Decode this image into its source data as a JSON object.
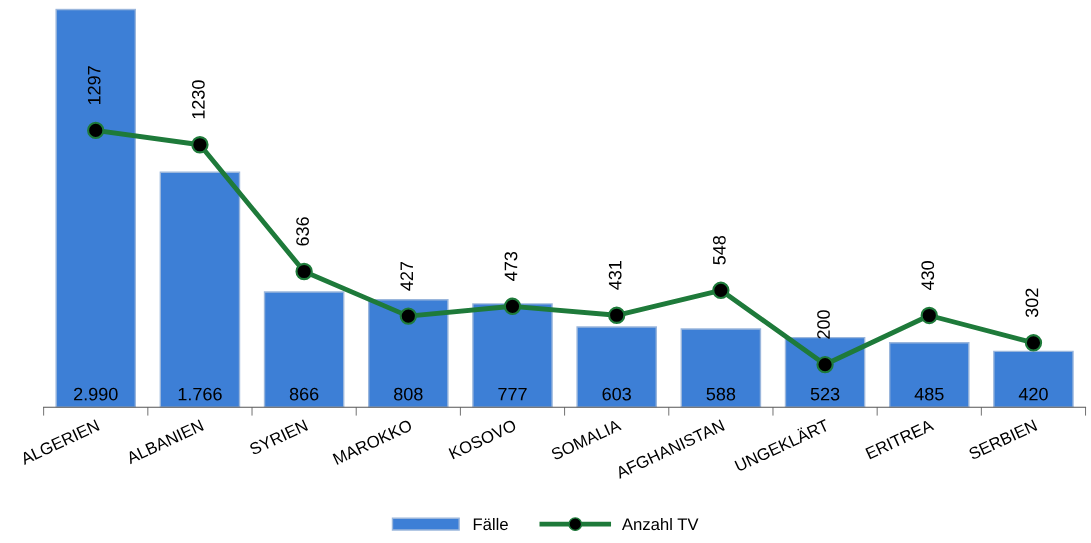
{
  "chart_data": {
    "type": "bar",
    "categories": [
      "ALGERIEN",
      "ALBANIEN",
      "SYRIEN",
      "MAROKKO",
      "KOSOVO",
      "SOMALIA",
      "AFGHANISTAN",
      "UNGEKLÄRT",
      "ERITREA",
      "SERBIEN"
    ],
    "series": [
      {
        "name": "Fälle",
        "color": "#3d7fd6",
        "values": [
          2990,
          1766,
          866,
          808,
          777,
          603,
          588,
          523,
          485,
          420
        ],
        "value_labels": [
          "2.990",
          "1.766",
          "866",
          "808",
          "777",
          "603",
          "588",
          "523",
          "485",
          "420"
        ]
      },
      {
        "name": "Anzahl TV",
        "type": "line",
        "axis": "y2",
        "color": "#1e7a3a",
        "marker": "circle",
        "values": [
          1297,
          1230,
          636,
          427,
          473,
          431,
          548,
          200,
          430,
          302
        ],
        "value_labels": [
          "1297",
          "1230",
          "636",
          "427",
          "473",
          "431",
          "548",
          "200",
          "430",
          "302"
        ]
      }
    ],
    "ylim": [
      0,
      3000
    ],
    "y2lim": [
      0,
      1870
    ],
    "tick_labels": "x",
    "legend": "bottom"
  }
}
